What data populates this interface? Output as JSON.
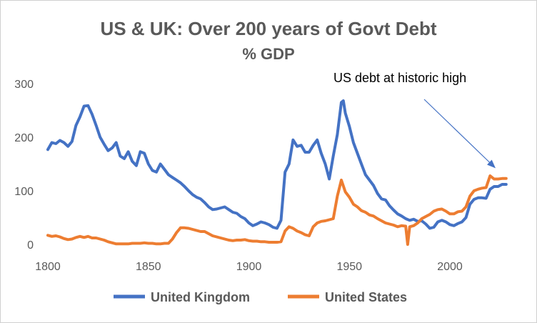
{
  "chart_data": {
    "type": "line",
    "title": "US & UK: Over 200 years of Govt Debt",
    "subtitle": "% GDP",
    "xlabel": "",
    "ylabel": "",
    "xlim": [
      1800,
      2028
    ],
    "ylim": [
      0,
      300
    ],
    "xticks": [
      1800,
      1850,
      1900,
      1950,
      2000
    ],
    "yticks": [
      0,
      100,
      200,
      300
    ],
    "grid": false,
    "legend": "bottom",
    "annotation": {
      "text": "US debt at historic high",
      "points_to": [
        2021,
        130
      ]
    },
    "series": [
      {
        "name": "United Kingdom",
        "color": "#4472C4",
        "points": [
          [
            1800,
            177
          ],
          [
            1802,
            190
          ],
          [
            1804,
            188
          ],
          [
            1806,
            194
          ],
          [
            1808,
            190
          ],
          [
            1810,
            183
          ],
          [
            1812,
            192
          ],
          [
            1814,
            222
          ],
          [
            1816,
            238
          ],
          [
            1818,
            258
          ],
          [
            1820,
            259
          ],
          [
            1822,
            243
          ],
          [
            1824,
            222
          ],
          [
            1826,
            200
          ],
          [
            1828,
            187
          ],
          [
            1830,
            175
          ],
          [
            1832,
            180
          ],
          [
            1834,
            190
          ],
          [
            1836,
            165
          ],
          [
            1838,
            160
          ],
          [
            1840,
            173
          ],
          [
            1842,
            155
          ],
          [
            1844,
            147
          ],
          [
            1846,
            173
          ],
          [
            1848,
            170
          ],
          [
            1850,
            150
          ],
          [
            1852,
            138
          ],
          [
            1854,
            135
          ],
          [
            1856,
            150
          ],
          [
            1858,
            140
          ],
          [
            1860,
            130
          ],
          [
            1862,
            125
          ],
          [
            1864,
            120
          ],
          [
            1866,
            115
          ],
          [
            1868,
            108
          ],
          [
            1870,
            100
          ],
          [
            1872,
            93
          ],
          [
            1874,
            88
          ],
          [
            1876,
            85
          ],
          [
            1878,
            78
          ],
          [
            1880,
            70
          ],
          [
            1882,
            65
          ],
          [
            1884,
            66
          ],
          [
            1886,
            68
          ],
          [
            1888,
            70
          ],
          [
            1890,
            65
          ],
          [
            1892,
            60
          ],
          [
            1894,
            58
          ],
          [
            1896,
            52
          ],
          [
            1898,
            48
          ],
          [
            1900,
            40
          ],
          [
            1902,
            35
          ],
          [
            1904,
            38
          ],
          [
            1906,
            42
          ],
          [
            1908,
            40
          ],
          [
            1910,
            37
          ],
          [
            1912,
            32
          ],
          [
            1914,
            30
          ],
          [
            1916,
            45
          ],
          [
            1918,
            135
          ],
          [
            1920,
            150
          ],
          [
            1922,
            195
          ],
          [
            1924,
            183
          ],
          [
            1926,
            185
          ],
          [
            1928,
            172
          ],
          [
            1930,
            172
          ],
          [
            1932,
            185
          ],
          [
            1934,
            195
          ],
          [
            1936,
            170
          ],
          [
            1938,
            150
          ],
          [
            1940,
            122
          ],
          [
            1942,
            165
          ],
          [
            1944,
            205
          ],
          [
            1946,
            265
          ],
          [
            1947,
            268
          ],
          [
            1948,
            245
          ],
          [
            1950,
            220
          ],
          [
            1952,
            190
          ],
          [
            1954,
            170
          ],
          [
            1956,
            150
          ],
          [
            1958,
            130
          ],
          [
            1960,
            120
          ],
          [
            1962,
            110
          ],
          [
            1964,
            95
          ],
          [
            1966,
            85
          ],
          [
            1968,
            83
          ],
          [
            1970,
            72
          ],
          [
            1972,
            64
          ],
          [
            1974,
            57
          ],
          [
            1976,
            53
          ],
          [
            1978,
            48
          ],
          [
            1980,
            45
          ],
          [
            1982,
            47
          ],
          [
            1984,
            43
          ],
          [
            1986,
            44
          ],
          [
            1988,
            38
          ],
          [
            1990,
            30
          ],
          [
            1992,
            32
          ],
          [
            1994,
            42
          ],
          [
            1996,
            45
          ],
          [
            1998,
            42
          ],
          [
            2000,
            37
          ],
          [
            2002,
            35
          ],
          [
            2004,
            39
          ],
          [
            2006,
            42
          ],
          [
            2008,
            50
          ],
          [
            2010,
            75
          ],
          [
            2012,
            84
          ],
          [
            2014,
            87
          ],
          [
            2016,
            87
          ],
          [
            2018,
            86
          ],
          [
            2020,
            103
          ],
          [
            2022,
            108
          ],
          [
            2024,
            108
          ],
          [
            2026,
            112
          ],
          [
            2028,
            112
          ]
        ]
      },
      {
        "name": "United States",
        "color": "#ED7D31",
        "points": [
          [
            1800,
            17
          ],
          [
            1802,
            15
          ],
          [
            1804,
            16
          ],
          [
            1806,
            14
          ],
          [
            1808,
            11
          ],
          [
            1810,
            9
          ],
          [
            1812,
            10
          ],
          [
            1814,
            13
          ],
          [
            1816,
            15
          ],
          [
            1818,
            13
          ],
          [
            1820,
            15
          ],
          [
            1822,
            12
          ],
          [
            1824,
            12
          ],
          [
            1826,
            10
          ],
          [
            1828,
            8
          ],
          [
            1830,
            5
          ],
          [
            1832,
            3
          ],
          [
            1834,
            1
          ],
          [
            1836,
            1
          ],
          [
            1838,
            1
          ],
          [
            1840,
            1
          ],
          [
            1842,
            2
          ],
          [
            1844,
            2
          ],
          [
            1846,
            2
          ],
          [
            1848,
            3
          ],
          [
            1850,
            2
          ],
          [
            1852,
            2
          ],
          [
            1854,
            1
          ],
          [
            1856,
            1
          ],
          [
            1858,
            2
          ],
          [
            1860,
            2
          ],
          [
            1862,
            10
          ],
          [
            1864,
            22
          ],
          [
            1866,
            31
          ],
          [
            1868,
            31
          ],
          [
            1870,
            30
          ],
          [
            1872,
            28
          ],
          [
            1874,
            26
          ],
          [
            1876,
            24
          ],
          [
            1878,
            24
          ],
          [
            1880,
            20
          ],
          [
            1882,
            16
          ],
          [
            1884,
            14
          ],
          [
            1886,
            12
          ],
          [
            1888,
            10
          ],
          [
            1890,
            8
          ],
          [
            1892,
            7
          ],
          [
            1894,
            8
          ],
          [
            1896,
            8
          ],
          [
            1898,
            9
          ],
          [
            1900,
            7
          ],
          [
            1902,
            6
          ],
          [
            1904,
            6
          ],
          [
            1906,
            5
          ],
          [
            1908,
            5
          ],
          [
            1910,
            4
          ],
          [
            1912,
            4
          ],
          [
            1914,
            4
          ],
          [
            1916,
            5
          ],
          [
            1918,
            25
          ],
          [
            1920,
            33
          ],
          [
            1922,
            30
          ],
          [
            1924,
            25
          ],
          [
            1926,
            22
          ],
          [
            1928,
            18
          ],
          [
            1930,
            16
          ],
          [
            1932,
            33
          ],
          [
            1934,
            40
          ],
          [
            1936,
            43
          ],
          [
            1938,
            44
          ],
          [
            1940,
            46
          ],
          [
            1942,
            48
          ],
          [
            1944,
            90
          ],
          [
            1946,
            120
          ],
          [
            1948,
            98
          ],
          [
            1950,
            88
          ],
          [
            1952,
            75
          ],
          [
            1954,
            70
          ],
          [
            1956,
            63
          ],
          [
            1958,
            60
          ],
          [
            1960,
            55
          ],
          [
            1962,
            53
          ],
          [
            1964,
            48
          ],
          [
            1966,
            44
          ],
          [
            1968,
            40
          ],
          [
            1970,
            38
          ],
          [
            1972,
            36
          ],
          [
            1974,
            33
          ],
          [
            1976,
            35
          ],
          [
            1978,
            34
          ],
          [
            1979,
            0
          ],
          [
            1980,
            33
          ],
          [
            1982,
            35
          ],
          [
            1984,
            40
          ],
          [
            1986,
            48
          ],
          [
            1988,
            52
          ],
          [
            1990,
            56
          ],
          [
            1992,
            62
          ],
          [
            1994,
            65
          ],
          [
            1996,
            66
          ],
          [
            1998,
            62
          ],
          [
            2000,
            57
          ],
          [
            2002,
            57
          ],
          [
            2004,
            61
          ],
          [
            2006,
            62
          ],
          [
            2008,
            70
          ],
          [
            2010,
            90
          ],
          [
            2012,
            100
          ],
          [
            2014,
            103
          ],
          [
            2016,
            105
          ],
          [
            2018,
            106
          ],
          [
            2020,
            128
          ],
          [
            2022,
            122
          ],
          [
            2024,
            122
          ],
          [
            2026,
            123
          ],
          [
            2028,
            123
          ]
        ]
      }
    ]
  }
}
